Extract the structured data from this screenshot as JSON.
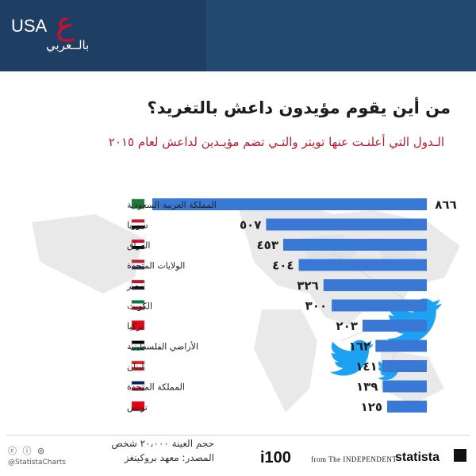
{
  "logo": {
    "usa": "USA",
    "ain": "ع",
    "arabic": "بالــعربي"
  },
  "header": {
    "title": "من أين يقوم مؤيدون داعش بالتغريد؟",
    "subtitle": "الـدول التي أعلنـت عنها تويتر والتـي تضم مؤيـدين لداعش لعام ٢٠١٥"
  },
  "colors": {
    "bar": "#3a78d6",
    "title": "#1d1d1d",
    "subtitle": "#b21f2d",
    "band": "#1e3f63",
    "twitter": "#1da1f2"
  },
  "chart_data": {
    "type": "bar",
    "orientation": "horizontal",
    "direction": "rtl",
    "categories": [
      "المملكة العربية السعودية",
      "سوريا",
      "العراق",
      "الولايات المتحدة",
      "مصر",
      "الكويت",
      "تركيا",
      "الأراضي الفلسطينية",
      "لبنان",
      "المملكة المتحدة",
      "تونس"
    ],
    "values": [
      866,
      507,
      453,
      404,
      326,
      300,
      203,
      162,
      141,
      139,
      125
    ],
    "value_labels": [
      "٨٦٦",
      "٥٠٧",
      "٤٥٣",
      "٤٠٤",
      "٣٢٦",
      "٣٠٠",
      "٢٠٣",
      "١٦٢",
      "١٤١",
      "١٣٩",
      "١٢٥"
    ],
    "flags": [
      "saudi-arabia",
      "syria",
      "iraq",
      "united-states",
      "egypt",
      "kuwait",
      "turkey",
      "palestine",
      "lebanon",
      "united-kingdom",
      "tunisia"
    ],
    "title": "من أين يقوم مؤيدون داعش بالتغريد؟",
    "xlabel": "",
    "ylabel": "",
    "xlim": [
      0,
      866
    ],
    "grid": false,
    "legend": "none"
  },
  "footer": {
    "note": "حجم العينة ٢٠،٠٠٠ شخص",
    "source": "المصدر: معهد بروكينغز",
    "cc": "ⓒ ⓘ ⊜",
    "handle": "@StatistaCharts",
    "i100": "i100",
    "independent": "from The INDEPENDENT",
    "statista": "statista"
  },
  "decor": {
    "twitter_icon": "twitter-bird-icon",
    "map": "world-map-background"
  }
}
